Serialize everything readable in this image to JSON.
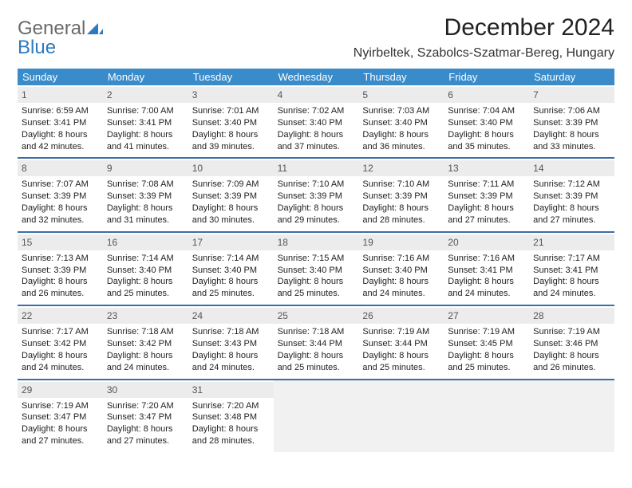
{
  "brand": {
    "part1": "General",
    "part2": "Blue"
  },
  "title": "December 2024",
  "location": "Nyirbeltek, Szabolcs-Szatmar-Bereg, Hungary",
  "colors": {
    "header_bar": "#3a8bc9",
    "week_divider": "#3a6ea8",
    "daynum_bg": "#ececec",
    "empty_bg": "#f1f1f1",
    "logo_gray": "#6a6a6a",
    "logo_blue": "#2e7abf"
  },
  "days_of_week": [
    "Sunday",
    "Monday",
    "Tuesday",
    "Wednesday",
    "Thursday",
    "Friday",
    "Saturday"
  ],
  "weeks": [
    [
      {
        "n": "1",
        "sr": "Sunrise: 6:59 AM",
        "ss": "Sunset: 3:41 PM",
        "d1": "Daylight: 8 hours",
        "d2": "and 42 minutes."
      },
      {
        "n": "2",
        "sr": "Sunrise: 7:00 AM",
        "ss": "Sunset: 3:41 PM",
        "d1": "Daylight: 8 hours",
        "d2": "and 41 minutes."
      },
      {
        "n": "3",
        "sr": "Sunrise: 7:01 AM",
        "ss": "Sunset: 3:40 PM",
        "d1": "Daylight: 8 hours",
        "d2": "and 39 minutes."
      },
      {
        "n": "4",
        "sr": "Sunrise: 7:02 AM",
        "ss": "Sunset: 3:40 PM",
        "d1": "Daylight: 8 hours",
        "d2": "and 37 minutes."
      },
      {
        "n": "5",
        "sr": "Sunrise: 7:03 AM",
        "ss": "Sunset: 3:40 PM",
        "d1": "Daylight: 8 hours",
        "d2": "and 36 minutes."
      },
      {
        "n": "6",
        "sr": "Sunrise: 7:04 AM",
        "ss": "Sunset: 3:40 PM",
        "d1": "Daylight: 8 hours",
        "d2": "and 35 minutes."
      },
      {
        "n": "7",
        "sr": "Sunrise: 7:06 AM",
        "ss": "Sunset: 3:39 PM",
        "d1": "Daylight: 8 hours",
        "d2": "and 33 minutes."
      }
    ],
    [
      {
        "n": "8",
        "sr": "Sunrise: 7:07 AM",
        "ss": "Sunset: 3:39 PM",
        "d1": "Daylight: 8 hours",
        "d2": "and 32 minutes."
      },
      {
        "n": "9",
        "sr": "Sunrise: 7:08 AM",
        "ss": "Sunset: 3:39 PM",
        "d1": "Daylight: 8 hours",
        "d2": "and 31 minutes."
      },
      {
        "n": "10",
        "sr": "Sunrise: 7:09 AM",
        "ss": "Sunset: 3:39 PM",
        "d1": "Daylight: 8 hours",
        "d2": "and 30 minutes."
      },
      {
        "n": "11",
        "sr": "Sunrise: 7:10 AM",
        "ss": "Sunset: 3:39 PM",
        "d1": "Daylight: 8 hours",
        "d2": "and 29 minutes."
      },
      {
        "n": "12",
        "sr": "Sunrise: 7:10 AM",
        "ss": "Sunset: 3:39 PM",
        "d1": "Daylight: 8 hours",
        "d2": "and 28 minutes."
      },
      {
        "n": "13",
        "sr": "Sunrise: 7:11 AM",
        "ss": "Sunset: 3:39 PM",
        "d1": "Daylight: 8 hours",
        "d2": "and 27 minutes."
      },
      {
        "n": "14",
        "sr": "Sunrise: 7:12 AM",
        "ss": "Sunset: 3:39 PM",
        "d1": "Daylight: 8 hours",
        "d2": "and 27 minutes."
      }
    ],
    [
      {
        "n": "15",
        "sr": "Sunrise: 7:13 AM",
        "ss": "Sunset: 3:39 PM",
        "d1": "Daylight: 8 hours",
        "d2": "and 26 minutes."
      },
      {
        "n": "16",
        "sr": "Sunrise: 7:14 AM",
        "ss": "Sunset: 3:40 PM",
        "d1": "Daylight: 8 hours",
        "d2": "and 25 minutes."
      },
      {
        "n": "17",
        "sr": "Sunrise: 7:14 AM",
        "ss": "Sunset: 3:40 PM",
        "d1": "Daylight: 8 hours",
        "d2": "and 25 minutes."
      },
      {
        "n": "18",
        "sr": "Sunrise: 7:15 AM",
        "ss": "Sunset: 3:40 PM",
        "d1": "Daylight: 8 hours",
        "d2": "and 25 minutes."
      },
      {
        "n": "19",
        "sr": "Sunrise: 7:16 AM",
        "ss": "Sunset: 3:40 PM",
        "d1": "Daylight: 8 hours",
        "d2": "and 24 minutes."
      },
      {
        "n": "20",
        "sr": "Sunrise: 7:16 AM",
        "ss": "Sunset: 3:41 PM",
        "d1": "Daylight: 8 hours",
        "d2": "and 24 minutes."
      },
      {
        "n": "21",
        "sr": "Sunrise: 7:17 AM",
        "ss": "Sunset: 3:41 PM",
        "d1": "Daylight: 8 hours",
        "d2": "and 24 minutes."
      }
    ],
    [
      {
        "n": "22",
        "sr": "Sunrise: 7:17 AM",
        "ss": "Sunset: 3:42 PM",
        "d1": "Daylight: 8 hours",
        "d2": "and 24 minutes."
      },
      {
        "n": "23",
        "sr": "Sunrise: 7:18 AM",
        "ss": "Sunset: 3:42 PM",
        "d1": "Daylight: 8 hours",
        "d2": "and 24 minutes."
      },
      {
        "n": "24",
        "sr": "Sunrise: 7:18 AM",
        "ss": "Sunset: 3:43 PM",
        "d1": "Daylight: 8 hours",
        "d2": "and 24 minutes."
      },
      {
        "n": "25",
        "sr": "Sunrise: 7:18 AM",
        "ss": "Sunset: 3:44 PM",
        "d1": "Daylight: 8 hours",
        "d2": "and 25 minutes."
      },
      {
        "n": "26",
        "sr": "Sunrise: 7:19 AM",
        "ss": "Sunset: 3:44 PM",
        "d1": "Daylight: 8 hours",
        "d2": "and 25 minutes."
      },
      {
        "n": "27",
        "sr": "Sunrise: 7:19 AM",
        "ss": "Sunset: 3:45 PM",
        "d1": "Daylight: 8 hours",
        "d2": "and 25 minutes."
      },
      {
        "n": "28",
        "sr": "Sunrise: 7:19 AM",
        "ss": "Sunset: 3:46 PM",
        "d1": "Daylight: 8 hours",
        "d2": "and 26 minutes."
      }
    ],
    [
      {
        "n": "29",
        "sr": "Sunrise: 7:19 AM",
        "ss": "Sunset: 3:47 PM",
        "d1": "Daylight: 8 hours",
        "d2": "and 27 minutes."
      },
      {
        "n": "30",
        "sr": "Sunrise: 7:20 AM",
        "ss": "Sunset: 3:47 PM",
        "d1": "Daylight: 8 hours",
        "d2": "and 27 minutes."
      },
      {
        "n": "31",
        "sr": "Sunrise: 7:20 AM",
        "ss": "Sunset: 3:48 PM",
        "d1": "Daylight: 8 hours",
        "d2": "and 28 minutes."
      },
      null,
      null,
      null,
      null
    ]
  ]
}
